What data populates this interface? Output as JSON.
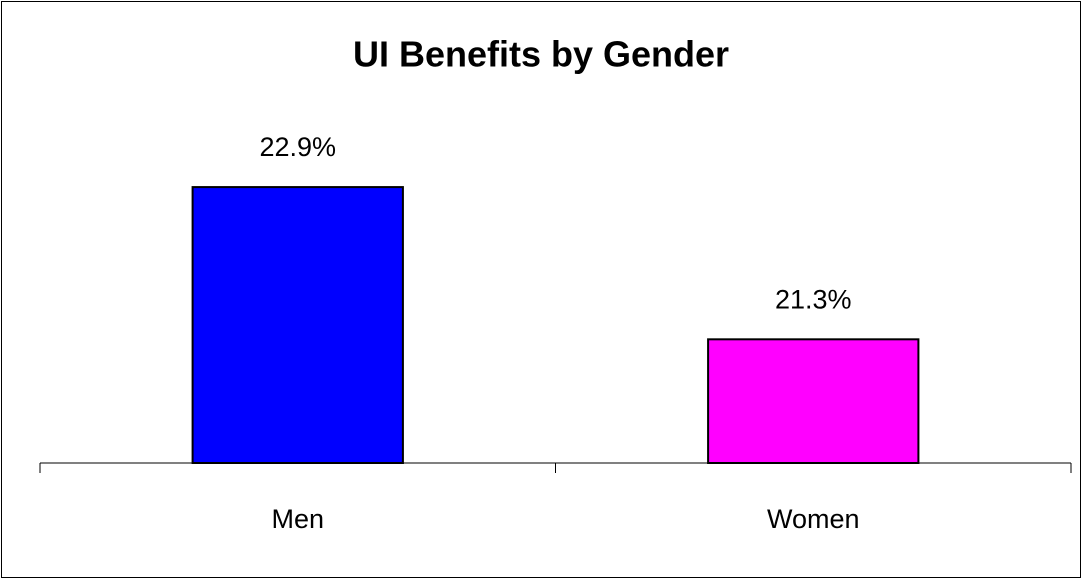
{
  "chart_data": {
    "type": "bar",
    "title": "UI Benefits by Gender",
    "categories": [
      "Men",
      "Women"
    ],
    "values": [
      22.9,
      21.3
    ],
    "value_labels": [
      "22.9%",
      "21.3%"
    ],
    "colors": [
      "#0000ff",
      "#ff00ff"
    ],
    "ylim": [
      20,
      23.5
    ]
  }
}
